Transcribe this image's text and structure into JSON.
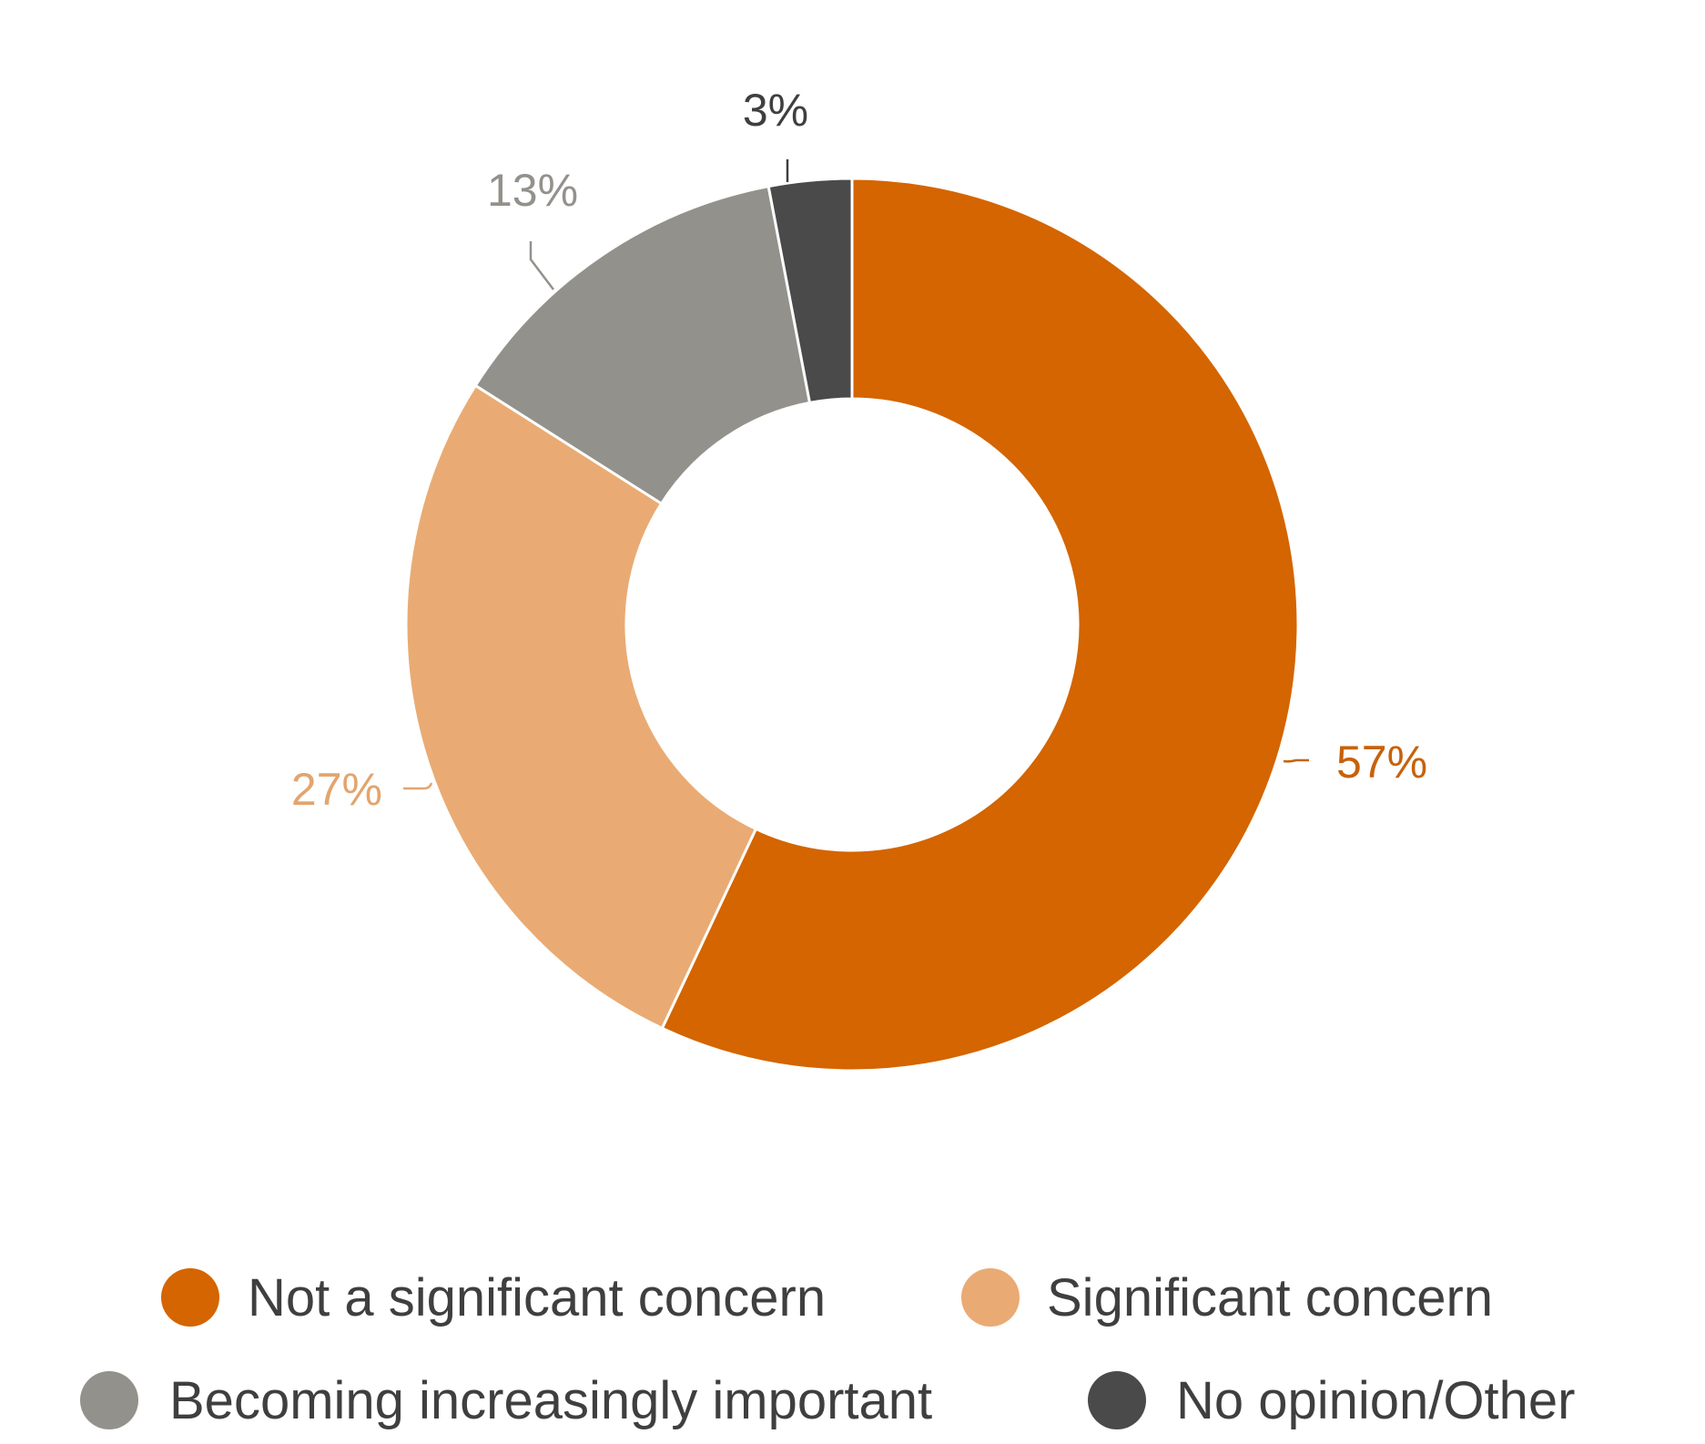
{
  "chart_data": {
    "type": "pie",
    "variant": "donut",
    "title": "",
    "categories": [
      "Not a significant concern",
      "Significant concern",
      "Becoming increasingly important",
      "No opinion/Other"
    ],
    "values": [
      57,
      27,
      13,
      3
    ],
    "labels": [
      "57%",
      "27%",
      "13%",
      "3%"
    ],
    "colors": [
      "#d46500",
      "#e9ab73",
      "#93918b",
      "#4a4a4a"
    ],
    "label_colors": [
      "#c7620a",
      "#e2a56f",
      "#93918b",
      "#3f3f3f"
    ],
    "legend_position": "bottom",
    "start_angle": "top, clockwise"
  }
}
